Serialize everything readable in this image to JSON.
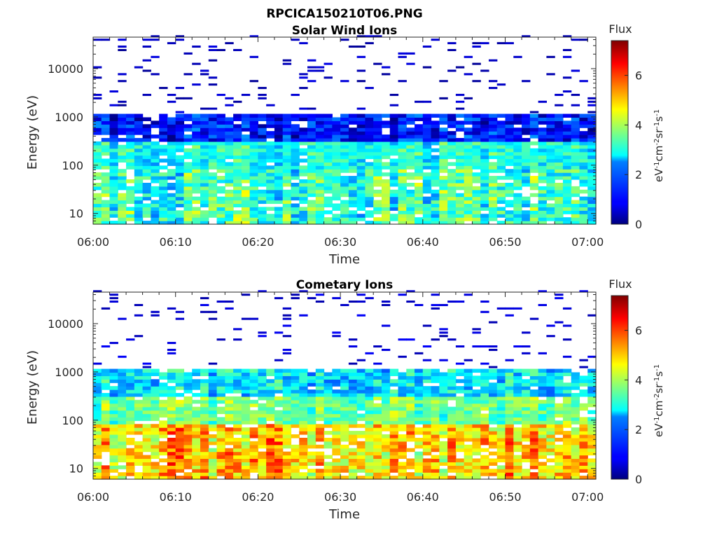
{
  "figure": {
    "title": "RPCICA150210T06.PNG"
  },
  "chart_data": [
    {
      "type": "heatmap",
      "title": "Solar Wind Ions",
      "xlabel": "Time",
      "ylabel": "Energy (eV)",
      "x_tick_labels": [
        "06:00",
        "06:10",
        "06:20",
        "06:30",
        "06:40",
        "06:50",
        "07:00"
      ],
      "x_range_minutes": [
        0,
        61
      ],
      "y_scale": "log",
      "y_range_eV": [
        6,
        45000
      ],
      "y_tick_values": [
        10,
        100,
        1000,
        10000
      ],
      "y_tick_labels": [
        "10",
        "100",
        "1000",
        "10000"
      ],
      "colorbar": {
        "label_top": "Flux",
        "unit_base": [
          "eV",
          "cm",
          "sr",
          "s"
        ],
        "unit_exp": [
          "-1",
          "-2",
          "-1",
          "-1"
        ],
        "range": [
          0,
          7.4
        ],
        "ticks": [
          "0",
          "2",
          "4",
          "6"
        ],
        "colormap": "jet"
      },
      "profile": {
        "hi_band_eV": [
          330,
          1100
        ],
        "hi_band_level": 0.7,
        "mid_band_eV": [
          90,
          330
        ],
        "mid_band_level": 2.9,
        "low_band_eV": [
          6,
          90
        ],
        "low_band_level": 3.1,
        "sparse_above_eV": 1100,
        "sparse_level": 0.15
      }
    },
    {
      "type": "heatmap",
      "title": "Cometary Ions",
      "xlabel": "Time",
      "ylabel": "Energy (eV)",
      "x_tick_labels": [
        "06:00",
        "06:10",
        "06:20",
        "06:30",
        "06:40",
        "06:50",
        "07:00"
      ],
      "x_range_minutes": [
        0,
        61
      ],
      "y_scale": "log",
      "y_range_eV": [
        6,
        45000
      ],
      "y_tick_values": [
        10,
        100,
        1000,
        10000
      ],
      "y_tick_labels": [
        "10",
        "100",
        "1000",
        "10000"
      ],
      "colorbar": {
        "label_top": "Flux",
        "unit_base": [
          "eV",
          "cm",
          "sr",
          "s"
        ],
        "unit_exp": [
          "-1",
          "-2",
          "-1",
          "-1"
        ],
        "range": [
          0,
          7.4
        ],
        "ticks": [
          "0",
          "2",
          "4",
          "6"
        ],
        "colormap": "jet"
      },
      "profile": {
        "hi_band_eV": [
          330,
          1200
        ],
        "hi_band_level": 2.3,
        "mid_band_eV": [
          90,
          330
        ],
        "mid_band_level": 3.6,
        "low_band_eV": [
          6,
          90
        ],
        "low_band_level": 5.0,
        "sparse_above_eV": 1200,
        "sparse_level": 0.3
      }
    }
  ]
}
